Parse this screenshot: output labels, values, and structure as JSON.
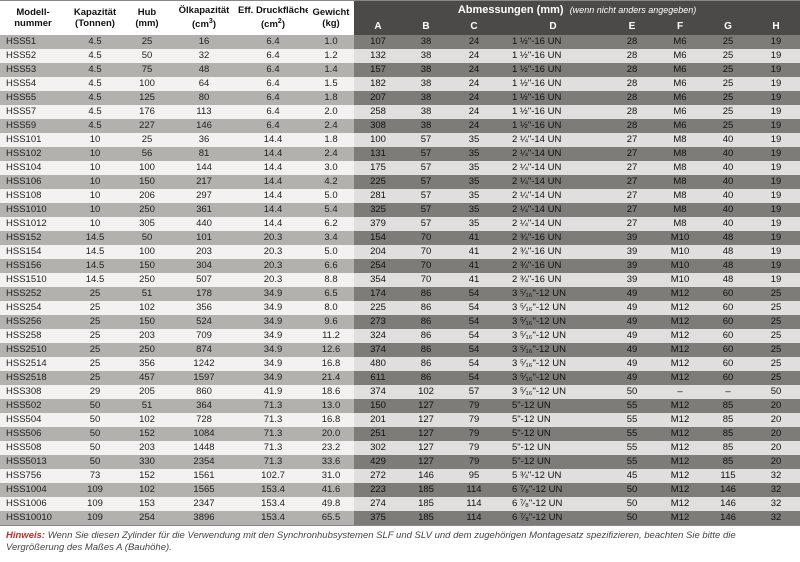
{
  "left_headers": [
    "Modell-\nnummer",
    "Kapazität\n(Tonnen)",
    "Hub\n(mm)",
    "Ölkapazität\n(cm³)",
    "Eff. Druckfläche\n(cm²)",
    "Gewicht\n(kg)"
  ],
  "right_superheader": "Abmessungen (mm)",
  "right_superheader_note": "(wenn nicht anders angegeben)",
  "right_headers": [
    "A",
    "B",
    "C",
    "D",
    "E",
    "F",
    "G",
    "H"
  ],
  "rows": [
    {
      "l": [
        "HSS51",
        "4.5",
        "25",
        "16",
        "6.4",
        "1.0"
      ],
      "r": [
        "107",
        "38",
        "24",
        "1 ½\"-16 UN",
        "28",
        "M6",
        "25",
        "19"
      ]
    },
    {
      "l": [
        "HSS52",
        "4.5",
        "50",
        "32",
        "6.4",
        "1.2"
      ],
      "r": [
        "132",
        "38",
        "24",
        "1 ½\"-16 UN",
        "28",
        "M6",
        "25",
        "19"
      ]
    },
    {
      "l": [
        "HSS53",
        "4.5",
        "75",
        "48",
        "6.4",
        "1.4"
      ],
      "r": [
        "157",
        "38",
        "24",
        "1 ½\"-16 UN",
        "28",
        "M6",
        "25",
        "19"
      ]
    },
    {
      "l": [
        "HSS54",
        "4.5",
        "100",
        "64",
        "6.4",
        "1.5"
      ],
      "r": [
        "182",
        "38",
        "24",
        "1 ½\"-16 UN",
        "28",
        "M6",
        "25",
        "19"
      ]
    },
    {
      "l": [
        "HSS55",
        "4.5",
        "125",
        "80",
        "6.4",
        "1.8"
      ],
      "r": [
        "207",
        "38",
        "24",
        "1 ½\"-16 UN",
        "28",
        "M6",
        "25",
        "19"
      ]
    },
    {
      "l": [
        "HSS57",
        "4.5",
        "176",
        "113",
        "6.4",
        "2.0"
      ],
      "r": [
        "258",
        "38",
        "24",
        "1 ½\"-16 UN",
        "28",
        "M6",
        "25",
        "19"
      ]
    },
    {
      "l": [
        "HSS59",
        "4.5",
        "227",
        "146",
        "6.4",
        "2.4"
      ],
      "r": [
        "308",
        "38",
        "24",
        "1 ½\"-16 UN",
        "28",
        "M6",
        "25",
        "19"
      ]
    },
    {
      "l": [
        "HSS101",
        "10",
        "25",
        "36",
        "14.4",
        "1.8"
      ],
      "r": [
        "100",
        "57",
        "35",
        "2 ¼\"-14 UN",
        "27",
        "M8",
        "40",
        "19"
      ]
    },
    {
      "l": [
        "HSS102",
        "10",
        "56",
        "81",
        "14.4",
        "2.4"
      ],
      "r": [
        "131",
        "57",
        "35",
        "2 ¼\"-14 UN",
        "27",
        "M8",
        "40",
        "19"
      ]
    },
    {
      "l": [
        "HSS104",
        "10",
        "100",
        "144",
        "14.4",
        "3.0"
      ],
      "r": [
        "175",
        "57",
        "35",
        "2 ¼\"-14 UN",
        "27",
        "M8",
        "40",
        "19"
      ]
    },
    {
      "l": [
        "HSS106",
        "10",
        "150",
        "217",
        "14.4",
        "4.2"
      ],
      "r": [
        "225",
        "57",
        "35",
        "2 ¼\"-14 UN",
        "27",
        "M8",
        "40",
        "19"
      ]
    },
    {
      "l": [
        "HSS108",
        "10",
        "206",
        "297",
        "14.4",
        "5.0"
      ],
      "r": [
        "281",
        "57",
        "35",
        "2 ¼\"-14 UN",
        "27",
        "M8",
        "40",
        "19"
      ]
    },
    {
      "l": [
        "HSS1010",
        "10",
        "250",
        "361",
        "14.4",
        "5.4"
      ],
      "r": [
        "325",
        "57",
        "35",
        "2 ¼\"-14 UN",
        "27",
        "M8",
        "40",
        "19"
      ]
    },
    {
      "l": [
        "HSS1012",
        "10",
        "305",
        "440",
        "14.4",
        "6.2"
      ],
      "r": [
        "379",
        "57",
        "35",
        "2 ¼\"-14 UN",
        "27",
        "M8",
        "40",
        "19"
      ]
    },
    {
      "l": [
        "HSS152",
        "14.5",
        "50",
        "101",
        "20.3",
        "3.4"
      ],
      "r": [
        "154",
        "70",
        "41",
        "2 ¾\"-16 UN",
        "39",
        "M10",
        "48",
        "19"
      ]
    },
    {
      "l": [
        "HSS154",
        "14.5",
        "100",
        "203",
        "20.3",
        "5.0"
      ],
      "r": [
        "204",
        "70",
        "41",
        "2 ¾\"-16 UN",
        "39",
        "M10",
        "48",
        "19"
      ]
    },
    {
      "l": [
        "HSS156",
        "14.5",
        "150",
        "304",
        "20.3",
        "6.6"
      ],
      "r": [
        "254",
        "70",
        "41",
        "2 ¾\"-16 UN",
        "39",
        "M10",
        "48",
        "19"
      ]
    },
    {
      "l": [
        "HSS1510",
        "14.5",
        "250",
        "507",
        "20.3",
        "8.8"
      ],
      "r": [
        "354",
        "70",
        "41",
        "2 ¾\"-16 UN",
        "39",
        "M10",
        "48",
        "19"
      ]
    },
    {
      "l": [
        "HSS252",
        "25",
        "51",
        "178",
        "34.9",
        "6.5"
      ],
      "r": [
        "174",
        "86",
        "54",
        "3 ⁵⁄₁₆\"-12 UN",
        "49",
        "M12",
        "60",
        "25"
      ]
    },
    {
      "l": [
        "HSS254",
        "25",
        "102",
        "356",
        "34.9",
        "8.0"
      ],
      "r": [
        "225",
        "86",
        "54",
        "3 ⁵⁄₁₆\"-12 UN",
        "49",
        "M12",
        "60",
        "25"
      ]
    },
    {
      "l": [
        "HSS256",
        "25",
        "150",
        "524",
        "34.9",
        "9.6"
      ],
      "r": [
        "273",
        "86",
        "54",
        "3 ⁵⁄₁₆\"-12 UN",
        "49",
        "M12",
        "60",
        "25"
      ]
    },
    {
      "l": [
        "HSS258",
        "25",
        "203",
        "709",
        "34.9",
        "11.2"
      ],
      "r": [
        "324",
        "86",
        "54",
        "3 ⁵⁄₁₆\"-12 UN",
        "49",
        "M12",
        "60",
        "25"
      ]
    },
    {
      "l": [
        "HSS2510",
        "25",
        "250",
        "874",
        "34.9",
        "12.6"
      ],
      "r": [
        "374",
        "86",
        "54",
        "3 ⁵⁄₁₆\"-12 UN",
        "49",
        "M12",
        "60",
        "25"
      ]
    },
    {
      "l": [
        "HSS2514",
        "25",
        "356",
        "1242",
        "34.9",
        "16.8"
      ],
      "r": [
        "480",
        "86",
        "54",
        "3 ⁵⁄₁₆\"-12 UN",
        "49",
        "M12",
        "60",
        "25"
      ]
    },
    {
      "l": [
        "HSS2518",
        "25",
        "457",
        "1597",
        "34.9",
        "21.4"
      ],
      "r": [
        "611",
        "86",
        "54",
        "3 ⁵⁄₁₆\"-12 UN",
        "49",
        "M12",
        "60",
        "25"
      ]
    },
    {
      "l": [
        "HSS308",
        "29",
        "205",
        "860",
        "41.9",
        "18.6"
      ],
      "r": [
        "374",
        "102",
        "57",
        "3 ⁵⁄₁₆\"-12 UN",
        "50",
        "–",
        "–",
        "50"
      ]
    },
    {
      "l": [
        "HSS502",
        "50",
        "51",
        "364",
        "71.3",
        "13.0"
      ],
      "r": [
        "150",
        "127",
        "79",
        "5\"-12 UN",
        "55",
        "M12",
        "85",
        "20"
      ]
    },
    {
      "l": [
        "HSS504",
        "50",
        "102",
        "728",
        "71.3",
        "16.8"
      ],
      "r": [
        "201",
        "127",
        "79",
        "5\"-12 UN",
        "55",
        "M12",
        "85",
        "20"
      ]
    },
    {
      "l": [
        "HSS506",
        "50",
        "152",
        "1084",
        "71.3",
        "20.0"
      ],
      "r": [
        "251",
        "127",
        "79",
        "5\"-12 UN",
        "55",
        "M12",
        "85",
        "20"
      ]
    },
    {
      "l": [
        "HSS508",
        "50",
        "203",
        "1448",
        "71.3",
        "23.2"
      ],
      "r": [
        "302",
        "127",
        "79",
        "5\"-12 UN",
        "55",
        "M12",
        "85",
        "20"
      ]
    },
    {
      "l": [
        "HSS5013",
        "50",
        "330",
        "2354",
        "71.3",
        "33.6"
      ],
      "r": [
        "429",
        "127",
        "79",
        "5\"-12 UN",
        "55",
        "M12",
        "85",
        "20"
      ]
    },
    {
      "l": [
        "HSS756",
        "73",
        "152",
        "1561",
        "102.7",
        "31.0"
      ],
      "r": [
        "272",
        "146",
        "95",
        "5 ¾\"-12 UN",
        "45",
        "M12",
        "115",
        "32"
      ]
    },
    {
      "l": [
        "HSS1004",
        "109",
        "102",
        "1565",
        "153.4",
        "41.6"
      ],
      "r": [
        "223",
        "185",
        "114",
        "6 ⁷⁄₈\"-12 UN",
        "50",
        "M12",
        "146",
        "32"
      ]
    },
    {
      "l": [
        "HSS1006",
        "109",
        "153",
        "2347",
        "153.4",
        "49.8"
      ],
      "r": [
        "274",
        "185",
        "114",
        "6 ⁷⁄₈\"-12 UN",
        "50",
        "M12",
        "146",
        "32"
      ]
    },
    {
      "l": [
        "HSS10010",
        "109",
        "254",
        "3896",
        "153.4",
        "65.5"
      ],
      "r": [
        "375",
        "185",
        "114",
        "6 ⁷⁄₈\"-12 UN",
        "50",
        "M12",
        "146",
        "32"
      ]
    }
  ],
  "note_label": "Hinweis:",
  "note_text": "Wenn Sie diesen Zylinder für die Verwendung mit den Synchronhubsystemen SLF und SLV und dem zugehörigen Montagesatz spezifizieren, beachten Sie bitte die Vergrößerung des Maßes A (Bauhöhe)."
}
